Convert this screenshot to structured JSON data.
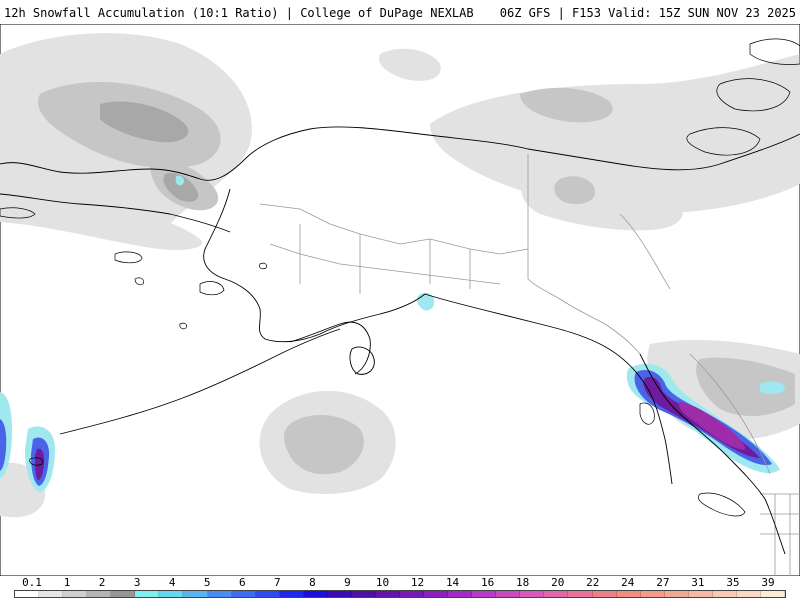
{
  "header": {
    "title": "12h Snowfall Accumulation (10:1 Ratio) | College of DuPage NEXLAB",
    "model_info": "06Z GFS | F153 Valid: 15Z SUN NOV 23 2025"
  },
  "legend": {
    "labels": [
      "0.1",
      "1",
      "2",
      "3",
      "4",
      "5",
      "6",
      "7",
      "8",
      "9",
      "10",
      "12",
      "14",
      "16",
      "18",
      "20",
      "22",
      "24",
      "27",
      "31",
      "35",
      "39"
    ],
    "colors": [
      "#ffffff",
      "#e6e6e6",
      "#cfcfcf",
      "#b4b4b4",
      "#969696",
      "#7ff0f0",
      "#66d7f0",
      "#5ab4f0",
      "#4a8cf0",
      "#3c6cf0",
      "#2e4cf0",
      "#1e28f0",
      "#1a0ee0",
      "#3a0cb8",
      "#5010a4",
      "#6414a8",
      "#7818b4",
      "#8c20bc",
      "#a02cc4",
      "#b43cc8",
      "#c84cc0",
      "#d85ab8",
      "#e068a8",
      "#e87498",
      "#ec8088",
      "#f08c80",
      "#f09c88",
      "#f0aa94",
      "#f4baa4",
      "#f8cab4",
      "#fadac4",
      "#fcead8"
    ]
  },
  "colors": {
    "snow_light": "#e2e2e2",
    "snow_moderate": "#c6c6c6",
    "snow_heavy": "#a8a8a8",
    "snow_cyan": "#9fe8f0",
    "snow_blue": "#4a64e8",
    "snow_purple": "#6c1c9c",
    "snow_magenta": "#9c2ca8",
    "coastline": "#000000",
    "borders": "#9a9a9a"
  }
}
